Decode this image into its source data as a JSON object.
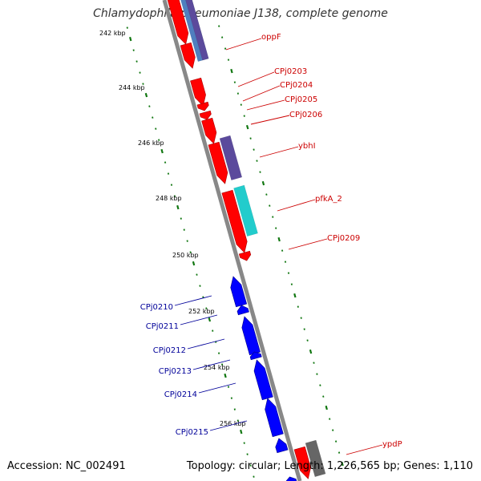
{
  "title": "Chlamydophila pneumoniae J138, complete genome",
  "footer": {
    "accession": "Accession: NC_002491",
    "summary": "Topology: circular; Length: 1,226,565 bp; Genes: 1,110"
  },
  "colors": {
    "forward_gene": "#ff0000",
    "reverse_gene": "#0000ff",
    "cog_purple": "#5b4a9c",
    "cog_cyan": "#22cccc",
    "cog_steel": "#4f7fbf",
    "cog_gray": "#666666",
    "forward_label": "#cc0000",
    "reverse_label": "#000099",
    "backbone": "#888888",
    "tick_dots": "#117711"
  },
  "kbp_ticks": [
    "242 kbp",
    "244 kbp",
    "246 kbp",
    "248 kbp",
    "250 kbp",
    "252 kbp",
    "254 kbp",
    "256 kbp"
  ],
  "forward_genes": [
    {
      "label": "oppF"
    },
    {
      "label": "CPj0203"
    },
    {
      "label": "CPj0204"
    },
    {
      "label": "CPj0205"
    },
    {
      "label": "CPj0206"
    },
    {
      "label": "ybhI"
    },
    {
      "label": "pfkA_2"
    },
    {
      "label": "CPj0209"
    },
    {
      "label": "ypdP"
    }
  ],
  "reverse_genes": [
    {
      "label": "CPj0210"
    },
    {
      "label": "CPj0211"
    },
    {
      "label": "CPj0212"
    },
    {
      "label": "CPj0213"
    },
    {
      "label": "CPj0214"
    },
    {
      "label": "CPj0215"
    }
  ]
}
